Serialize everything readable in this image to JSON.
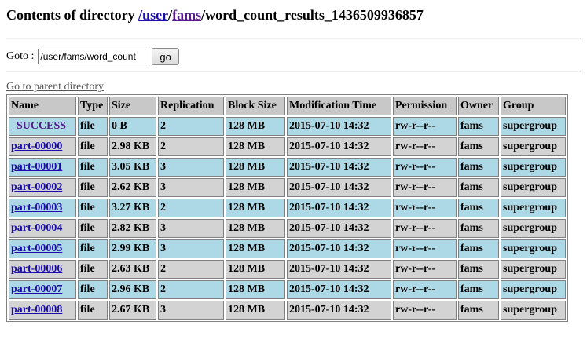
{
  "header": {
    "prefix": "Contents of directory ",
    "path_sep": "/",
    "path_user": "user",
    "path_fams": "fams",
    "path_rest": "/word_count_results_1436509936857"
  },
  "goto": {
    "label": "Goto :",
    "value": "/user/fams/word_count",
    "button": "go"
  },
  "parent_link": "Go to parent directory",
  "table": {
    "columns": [
      "Name",
      "Type",
      "Size",
      "Replication",
      "Block Size",
      "Modification Time",
      "Permission",
      "Owner",
      "Group"
    ],
    "rows": [
      {
        "name": "_SUCCESS",
        "type": "file",
        "size": "0 B",
        "replication": "2",
        "block_size": "128 MB",
        "mtime": "2015-07-10 14:32",
        "permission": "rw-r--r--",
        "owner": "fams",
        "group": "supergroup"
      },
      {
        "name": "part-00000",
        "type": "file",
        "size": "2.98 KB",
        "replication": "2",
        "block_size": "128 MB",
        "mtime": "2015-07-10 14:32",
        "permission": "rw-r--r--",
        "owner": "fams",
        "group": "supergroup"
      },
      {
        "name": "part-00001",
        "type": "file",
        "size": "3.05 KB",
        "replication": "3",
        "block_size": "128 MB",
        "mtime": "2015-07-10 14:32",
        "permission": "rw-r--r--",
        "owner": "fams",
        "group": "supergroup"
      },
      {
        "name": "part-00002",
        "type": "file",
        "size": "2.62 KB",
        "replication": "3",
        "block_size": "128 MB",
        "mtime": "2015-07-10 14:32",
        "permission": "rw-r--r--",
        "owner": "fams",
        "group": "supergroup"
      },
      {
        "name": "part-00003",
        "type": "file",
        "size": "3.27 KB",
        "replication": "2",
        "block_size": "128 MB",
        "mtime": "2015-07-10 14:32",
        "permission": "rw-r--r--",
        "owner": "fams",
        "group": "supergroup"
      },
      {
        "name": "part-00004",
        "type": "file",
        "size": "2.82 KB",
        "replication": "3",
        "block_size": "128 MB",
        "mtime": "2015-07-10 14:32",
        "permission": "rw-r--r--",
        "owner": "fams",
        "group": "supergroup"
      },
      {
        "name": "part-00005",
        "type": "file",
        "size": "2.99 KB",
        "replication": "3",
        "block_size": "128 MB",
        "mtime": "2015-07-10 14:32",
        "permission": "rw-r--r--",
        "owner": "fams",
        "group": "supergroup"
      },
      {
        "name": "part-00006",
        "type": "file",
        "size": "2.63 KB",
        "replication": "2",
        "block_size": "128 MB",
        "mtime": "2015-07-10 14:32",
        "permission": "rw-r--r--",
        "owner": "fams",
        "group": "supergroup"
      },
      {
        "name": "part-00007",
        "type": "file",
        "size": "2.96 KB",
        "replication": "2",
        "block_size": "128 MB",
        "mtime": "2015-07-10 14:32",
        "permission": "rw-r--r--",
        "owner": "fams",
        "group": "supergroup"
      },
      {
        "name": "part-00008",
        "type": "file",
        "size": "2.67 KB",
        "replication": "3",
        "block_size": "128 MB",
        "mtime": "2015-07-10 14:32",
        "permission": "rw-r--r--",
        "owner": "fams",
        "group": "supergroup"
      }
    ]
  },
  "colors": {
    "row_odd": "#add8e6",
    "row_even": "#d3d3d3",
    "header_bg": "#c8c8c8",
    "link": "#1a0dab",
    "visited_link": "#551a8b"
  }
}
